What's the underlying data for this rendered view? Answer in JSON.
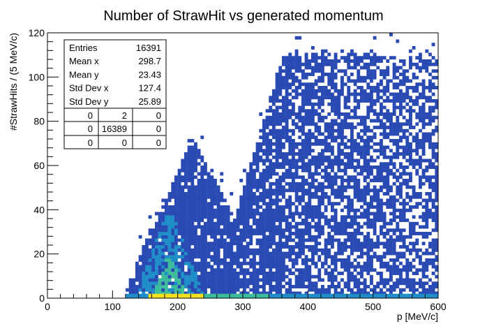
{
  "chart_data": {
    "type": "heatmap",
    "title": "Number of StrawHit vs generated momentum",
    "xlabel": "p [MeV/c]",
    "ylabel": "#StrawHits / (5 MeV/c)",
    "xlim": [
      0,
      600
    ],
    "ylim": [
      0,
      120
    ],
    "x_ticks": [
      "0",
      "100",
      "200",
      "300",
      "400",
      "500",
      "600"
    ],
    "y_ticks": [
      "0",
      "20",
      "40",
      "60",
      "80",
      "100",
      "120"
    ],
    "grid": false,
    "stats_box": {
      "rows": [
        {
          "label": "Entries",
          "value": "16391"
        },
        {
          "label": "Mean x",
          "value": "298.7"
        },
        {
          "label": "Mean y",
          "value": "23.43"
        },
        {
          "label": "Std Dev x",
          "value": "127.4"
        },
        {
          "label": "Std Dev y",
          "value": "25.89"
        }
      ],
      "grid": [
        [
          "0",
          "2",
          "0"
        ],
        [
          "0",
          "16389",
          "0"
        ],
        [
          "0",
          "0",
          "0"
        ]
      ]
    },
    "distribution": {
      "x_min_populated": 120,
      "zero_hit_band_intensity": "high",
      "lobes": [
        {
          "p_center": 190,
          "p_width": 30,
          "hits_peak": 30,
          "hits_max": 70
        },
        {
          "p_range": [
            300,
            600
          ],
          "hits_max": 112
        }
      ]
    },
    "colors": {
      "low": "#2a4ab3",
      "mid": "#1f8ec8",
      "high": "#3cbc9a",
      "peak": "#f5e01c"
    }
  }
}
